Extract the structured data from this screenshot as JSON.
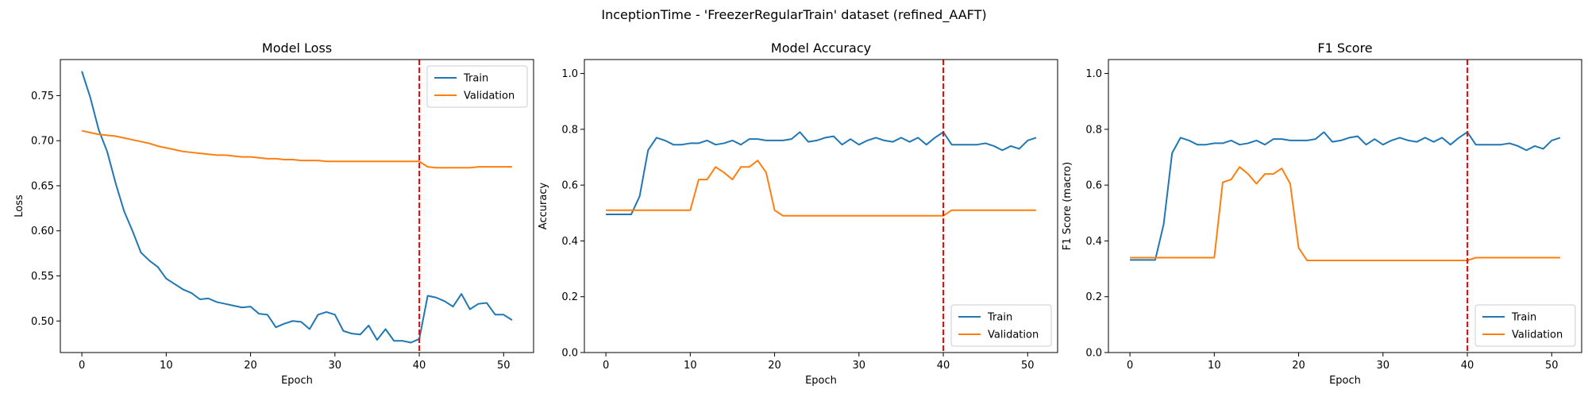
{
  "suptitle": "InceptionTime - 'FreezerRegularTrain' dataset (refined_AAFT)",
  "colors": {
    "train": "#1f77b4",
    "validation": "#ff7f0e",
    "marker": "#ff0000"
  },
  "chart_data": [
    {
      "type": "line",
      "title": "Model Loss",
      "xlabel": "Epoch",
      "ylabel": "Loss",
      "xlim": [
        -2.55,
        53.55
      ],
      "ylim": [
        0.465,
        0.79
      ],
      "xticks": [
        0,
        10,
        20,
        30,
        40,
        50
      ],
      "yticks": [
        0.5,
        0.55,
        0.6,
        0.65,
        0.7,
        0.75
      ],
      "tick_decimals": 2,
      "grid": false,
      "legend_position": "upper right",
      "vline_x": 40,
      "series": [
        {
          "name": "Train",
          "values": [
            0.777,
            0.748,
            0.712,
            0.688,
            0.653,
            0.622,
            0.6,
            0.576,
            0.567,
            0.56,
            0.547,
            0.541,
            0.535,
            0.531,
            0.524,
            0.525,
            0.521,
            0.519,
            0.517,
            0.515,
            0.516,
            0.508,
            0.507,
            0.493,
            0.497,
            0.5,
            0.499,
            0.491,
            0.507,
            0.51,
            0.507,
            0.489,
            0.486,
            0.485,
            0.495,
            0.479,
            0.491,
            0.478,
            0.478,
            0.476,
            0.48,
            0.528,
            0.526,
            0.522,
            0.516,
            0.53,
            0.513,
            0.519,
            0.52,
            0.507,
            0.507,
            0.501
          ]
        },
        {
          "name": "Validation",
          "values": [
            0.711,
            0.709,
            0.707,
            0.706,
            0.705,
            0.703,
            0.701,
            0.699,
            0.697,
            0.694,
            0.692,
            0.69,
            0.688,
            0.687,
            0.686,
            0.685,
            0.684,
            0.684,
            0.683,
            0.682,
            0.682,
            0.681,
            0.68,
            0.68,
            0.679,
            0.679,
            0.678,
            0.678,
            0.678,
            0.677,
            0.677,
            0.677,
            0.677,
            0.677,
            0.677,
            0.677,
            0.677,
            0.677,
            0.677,
            0.677,
            0.677,
            0.671,
            0.67,
            0.67,
            0.67,
            0.67,
            0.67,
            0.671,
            0.671,
            0.671,
            0.671,
            0.671
          ]
        }
      ]
    },
    {
      "type": "line",
      "title": "Model Accuracy",
      "xlabel": "Epoch",
      "ylabel": "Accuracy",
      "xlim": [
        -2.55,
        53.55
      ],
      "ylim": [
        0.0,
        1.05
      ],
      "xticks": [
        0,
        10,
        20,
        30,
        40,
        50
      ],
      "yticks": [
        0.0,
        0.2,
        0.4,
        0.6,
        0.8,
        1.0
      ],
      "tick_decimals": 1,
      "grid": false,
      "legend_position": "lower right",
      "vline_x": 40,
      "series": [
        {
          "name": "Train",
          "values": [
            0.495,
            0.495,
            0.495,
            0.495,
            0.56,
            0.725,
            0.77,
            0.76,
            0.745,
            0.745,
            0.75,
            0.75,
            0.76,
            0.745,
            0.75,
            0.76,
            0.745,
            0.765,
            0.765,
            0.76,
            0.76,
            0.76,
            0.765,
            0.79,
            0.755,
            0.76,
            0.77,
            0.775,
            0.745,
            0.765,
            0.745,
            0.76,
            0.77,
            0.76,
            0.755,
            0.77,
            0.755,
            0.77,
            0.745,
            0.77,
            0.79,
            0.745,
            0.745,
            0.745,
            0.745,
            0.75,
            0.74,
            0.725,
            0.74,
            0.73,
            0.76,
            0.77
          ]
        },
        {
          "name": "Validation",
          "values": [
            0.51,
            0.51,
            0.51,
            0.51,
            0.51,
            0.51,
            0.51,
            0.51,
            0.51,
            0.51,
            0.51,
            0.62,
            0.62,
            0.665,
            0.645,
            0.62,
            0.665,
            0.665,
            0.688,
            0.645,
            0.51,
            0.49,
            0.49,
            0.49,
            0.49,
            0.49,
            0.49,
            0.49,
            0.49,
            0.49,
            0.49,
            0.49,
            0.49,
            0.49,
            0.49,
            0.49,
            0.49,
            0.49,
            0.49,
            0.49,
            0.49,
            0.51,
            0.51,
            0.51,
            0.51,
            0.51,
            0.51,
            0.51,
            0.51,
            0.51,
            0.51,
            0.51
          ]
        }
      ]
    },
    {
      "type": "line",
      "title": "F1 Score",
      "xlabel": "Epoch",
      "ylabel": "F1 Score (macro)",
      "xlim": [
        -2.55,
        53.55
      ],
      "ylim": [
        0.0,
        1.05
      ],
      "xticks": [
        0,
        10,
        20,
        30,
        40,
        50
      ],
      "yticks": [
        0.0,
        0.2,
        0.4,
        0.6,
        0.8,
        1.0
      ],
      "tick_decimals": 1,
      "grid": false,
      "legend_position": "lower right",
      "vline_x": 40,
      "series": [
        {
          "name": "Train",
          "values": [
            0.332,
            0.332,
            0.332,
            0.332,
            0.46,
            0.715,
            0.77,
            0.76,
            0.745,
            0.745,
            0.75,
            0.75,
            0.76,
            0.745,
            0.75,
            0.76,
            0.745,
            0.765,
            0.765,
            0.76,
            0.76,
            0.76,
            0.765,
            0.79,
            0.755,
            0.76,
            0.77,
            0.775,
            0.745,
            0.765,
            0.745,
            0.76,
            0.77,
            0.76,
            0.755,
            0.77,
            0.755,
            0.77,
            0.745,
            0.77,
            0.79,
            0.745,
            0.745,
            0.745,
            0.745,
            0.75,
            0.74,
            0.725,
            0.74,
            0.73,
            0.76,
            0.77
          ]
        },
        {
          "name": "Validation",
          "values": [
            0.34,
            0.34,
            0.34,
            0.34,
            0.34,
            0.34,
            0.34,
            0.34,
            0.34,
            0.34,
            0.34,
            0.61,
            0.62,
            0.665,
            0.64,
            0.605,
            0.64,
            0.64,
            0.66,
            0.605,
            0.375,
            0.33,
            0.33,
            0.33,
            0.33,
            0.33,
            0.33,
            0.33,
            0.33,
            0.33,
            0.33,
            0.33,
            0.33,
            0.33,
            0.33,
            0.33,
            0.33,
            0.33,
            0.33,
            0.33,
            0.33,
            0.34,
            0.34,
            0.34,
            0.34,
            0.34,
            0.34,
            0.34,
            0.34,
            0.34,
            0.34,
            0.34
          ]
        }
      ]
    }
  ]
}
